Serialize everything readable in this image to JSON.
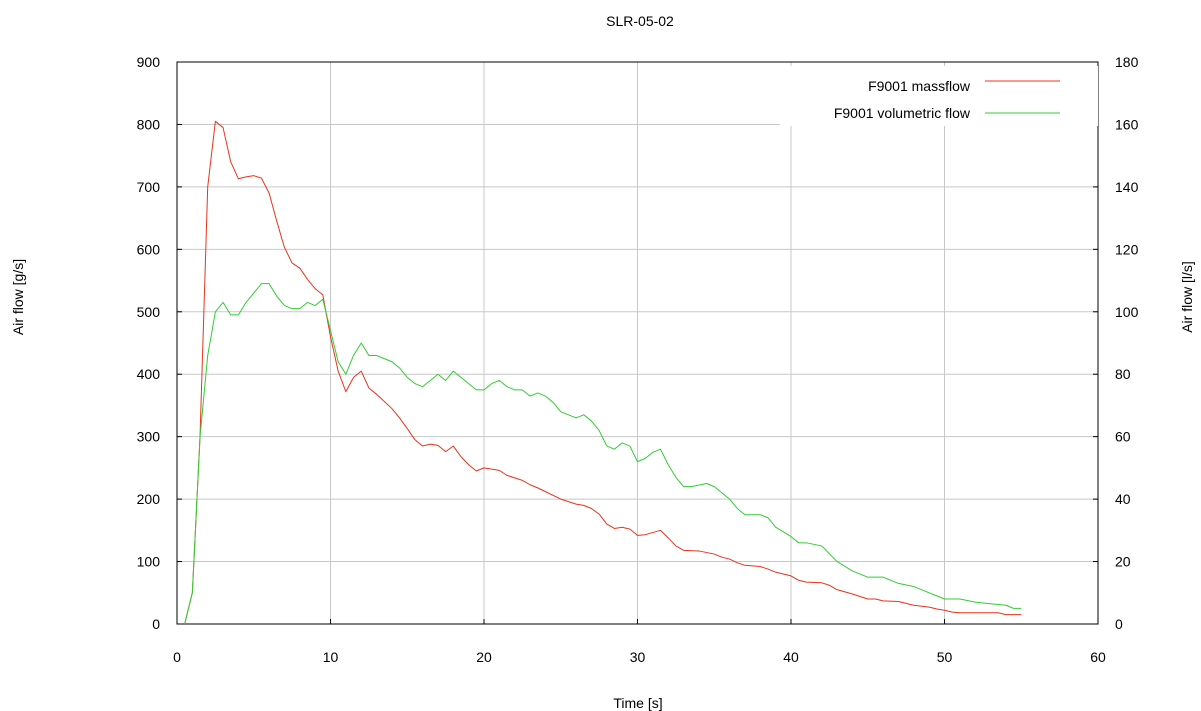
{
  "chart_data": {
    "type": "line",
    "title": "SLR-05-02",
    "xlabel": "Time [s]",
    "ylabel": "Air flow [g/s]",
    "y2label": "Air flow [l/s]",
    "xlim": [
      0,
      60
    ],
    "ylim": [
      0,
      900
    ],
    "y2lim": [
      0,
      180
    ],
    "xticks": [
      "0",
      "10",
      "20",
      "30",
      "40",
      "50",
      "60"
    ],
    "yticks": [
      "0",
      "100",
      "200",
      "300",
      "400",
      "500",
      "600",
      "700",
      "800",
      "900"
    ],
    "y2ticks": [
      "0",
      "20",
      "40",
      "60",
      "80",
      "100",
      "120",
      "140",
      "160",
      "180"
    ],
    "grid": true,
    "legend_position": "top-right",
    "series": [
      {
        "name": "F9001 massflow",
        "axis": "left",
        "color": "#e8341c",
        "points": [
          [
            0.5,
            0
          ],
          [
            1.0,
            50
          ],
          [
            1.5,
            300
          ],
          [
            2.0,
            700
          ],
          [
            2.5,
            805
          ],
          [
            3.0,
            795
          ],
          [
            3.5,
            740
          ],
          [
            4.0,
            713
          ],
          [
            4.5,
            716
          ],
          [
            5.0,
            718
          ],
          [
            5.5,
            714
          ],
          [
            6.0,
            690
          ],
          [
            6.5,
            645
          ],
          [
            7.0,
            603
          ],
          [
            7.5,
            578
          ],
          [
            8.0,
            570
          ],
          [
            8.5,
            552
          ],
          [
            9.0,
            537
          ],
          [
            9.5,
            527
          ],
          [
            10.0,
            460
          ],
          [
            10.5,
            405
          ],
          [
            11.0,
            372
          ],
          [
            11.5,
            395
          ],
          [
            12.0,
            405
          ],
          [
            12.5,
            378
          ],
          [
            13.0,
            368
          ],
          [
            14.0,
            345
          ],
          [
            14.5,
            330
          ],
          [
            15.0,
            313
          ],
          [
            15.5,
            295
          ],
          [
            16.0,
            285
          ],
          [
            16.5,
            288
          ],
          [
            17.0,
            286
          ],
          [
            17.5,
            276
          ],
          [
            18.0,
            285
          ],
          [
            18.5,
            268
          ],
          [
            19.0,
            255
          ],
          [
            19.5,
            245
          ],
          [
            20.0,
            250
          ],
          [
            21.0,
            246
          ],
          [
            21.5,
            238
          ],
          [
            22.5,
            230
          ],
          [
            23.0,
            223
          ],
          [
            23.5,
            218
          ],
          [
            24.0,
            212
          ],
          [
            25.0,
            200
          ],
          [
            26.0,
            192
          ],
          [
            26.5,
            190
          ],
          [
            27.0,
            185
          ],
          [
            27.5,
            176
          ],
          [
            28.0,
            160
          ],
          [
            28.5,
            153
          ],
          [
            29.0,
            155
          ],
          [
            29.5,
            152
          ],
          [
            30.0,
            142
          ],
          [
            30.5,
            143
          ],
          [
            31.5,
            150
          ],
          [
            32.0,
            138
          ],
          [
            32.5,
            125
          ],
          [
            33.0,
            118
          ],
          [
            34.0,
            117
          ],
          [
            35.0,
            112
          ],
          [
            35.5,
            107
          ],
          [
            36.0,
            104
          ],
          [
            36.5,
            98
          ],
          [
            37.0,
            94
          ],
          [
            38.0,
            92
          ],
          [
            38.5,
            88
          ],
          [
            39.0,
            83
          ],
          [
            40.0,
            77
          ],
          [
            40.5,
            70
          ],
          [
            41.0,
            67
          ],
          [
            42.0,
            66
          ],
          [
            42.5,
            62
          ],
          [
            43.0,
            55
          ],
          [
            44.0,
            48
          ],
          [
            44.5,
            44
          ],
          [
            45.0,
            40
          ],
          [
            45.5,
            40
          ],
          [
            46.0,
            37
          ],
          [
            47.0,
            36
          ],
          [
            47.5,
            33
          ],
          [
            48.0,
            30
          ],
          [
            49.0,
            27
          ],
          [
            49.5,
            24
          ],
          [
            50.0,
            22
          ],
          [
            50.5,
            19
          ],
          [
            51.0,
            18
          ],
          [
            52.0,
            18
          ],
          [
            53.0,
            18
          ],
          [
            53.5,
            18
          ],
          [
            54.0,
            15
          ],
          [
            55.0,
            15
          ]
        ]
      },
      {
        "name": "F9001 volumetric flow",
        "axis": "right",
        "color": "#33cc33",
        "points": [
          [
            0.5,
            0
          ],
          [
            1.0,
            10
          ],
          [
            1.5,
            60
          ],
          [
            2.0,
            86
          ],
          [
            2.5,
            100
          ],
          [
            3.0,
            103
          ],
          [
            3.5,
            99
          ],
          [
            4.0,
            99
          ],
          [
            4.5,
            103
          ],
          [
            5.0,
            106
          ],
          [
            5.5,
            109
          ],
          [
            6.0,
            109
          ],
          [
            6.5,
            105
          ],
          [
            7.0,
            102
          ],
          [
            7.5,
            101
          ],
          [
            8.0,
            101
          ],
          [
            8.5,
            103
          ],
          [
            9.0,
            102
          ],
          [
            9.5,
            104
          ],
          [
            10.0,
            94
          ],
          [
            10.5,
            84
          ],
          [
            11.0,
            80
          ],
          [
            11.5,
            86
          ],
          [
            12.0,
            90
          ],
          [
            12.5,
            86
          ],
          [
            13.0,
            86
          ],
          [
            13.5,
            85
          ],
          [
            14.0,
            84
          ],
          [
            14.5,
            82
          ],
          [
            15.0,
            79
          ],
          [
            15.5,
            77
          ],
          [
            16.0,
            76
          ],
          [
            16.5,
            78
          ],
          [
            17.0,
            80
          ],
          [
            17.5,
            78
          ],
          [
            18.0,
            81
          ],
          [
            18.5,
            79
          ],
          [
            19.0,
            77
          ],
          [
            19.5,
            75
          ],
          [
            20.0,
            75
          ],
          [
            20.5,
            77
          ],
          [
            21.0,
            78
          ],
          [
            21.5,
            76
          ],
          [
            22.0,
            75
          ],
          [
            22.5,
            75
          ],
          [
            23.0,
            73
          ],
          [
            23.5,
            74
          ],
          [
            24.0,
            73
          ],
          [
            24.5,
            71
          ],
          [
            25.0,
            68
          ],
          [
            25.5,
            67
          ],
          [
            26.0,
            66
          ],
          [
            26.5,
            67
          ],
          [
            27.0,
            65
          ],
          [
            27.5,
            62
          ],
          [
            28.0,
            57
          ],
          [
            28.5,
            56
          ],
          [
            29.0,
            58
          ],
          [
            29.5,
            57
          ],
          [
            30.0,
            52
          ],
          [
            30.5,
            53
          ],
          [
            31.0,
            55
          ],
          [
            31.5,
            56
          ],
          [
            32.0,
            51
          ],
          [
            32.5,
            47
          ],
          [
            33.0,
            44
          ],
          [
            33.5,
            44
          ],
          [
            34.5,
            45
          ],
          [
            35.0,
            44
          ],
          [
            35.5,
            42
          ],
          [
            36.0,
            40
          ],
          [
            36.5,
            37
          ],
          [
            37.0,
            35
          ],
          [
            38.0,
            35
          ],
          [
            38.5,
            34
          ],
          [
            39.0,
            31
          ],
          [
            40.0,
            28
          ],
          [
            40.5,
            26
          ],
          [
            41.0,
            26
          ],
          [
            42.0,
            25
          ],
          [
            43.0,
            20
          ],
          [
            44.0,
            17
          ],
          [
            44.5,
            16
          ],
          [
            45.0,
            15
          ],
          [
            46.0,
            15
          ],
          [
            46.5,
            14
          ],
          [
            47.0,
            13
          ],
          [
            48.0,
            12
          ],
          [
            49.0,
            10
          ],
          [
            49.5,
            9
          ],
          [
            50.0,
            8
          ],
          [
            51.0,
            8
          ],
          [
            52.0,
            7
          ],
          [
            53.0,
            6.5
          ],
          [
            54.0,
            6
          ],
          [
            54.5,
            5
          ],
          [
            55.0,
            5
          ]
        ]
      }
    ]
  }
}
